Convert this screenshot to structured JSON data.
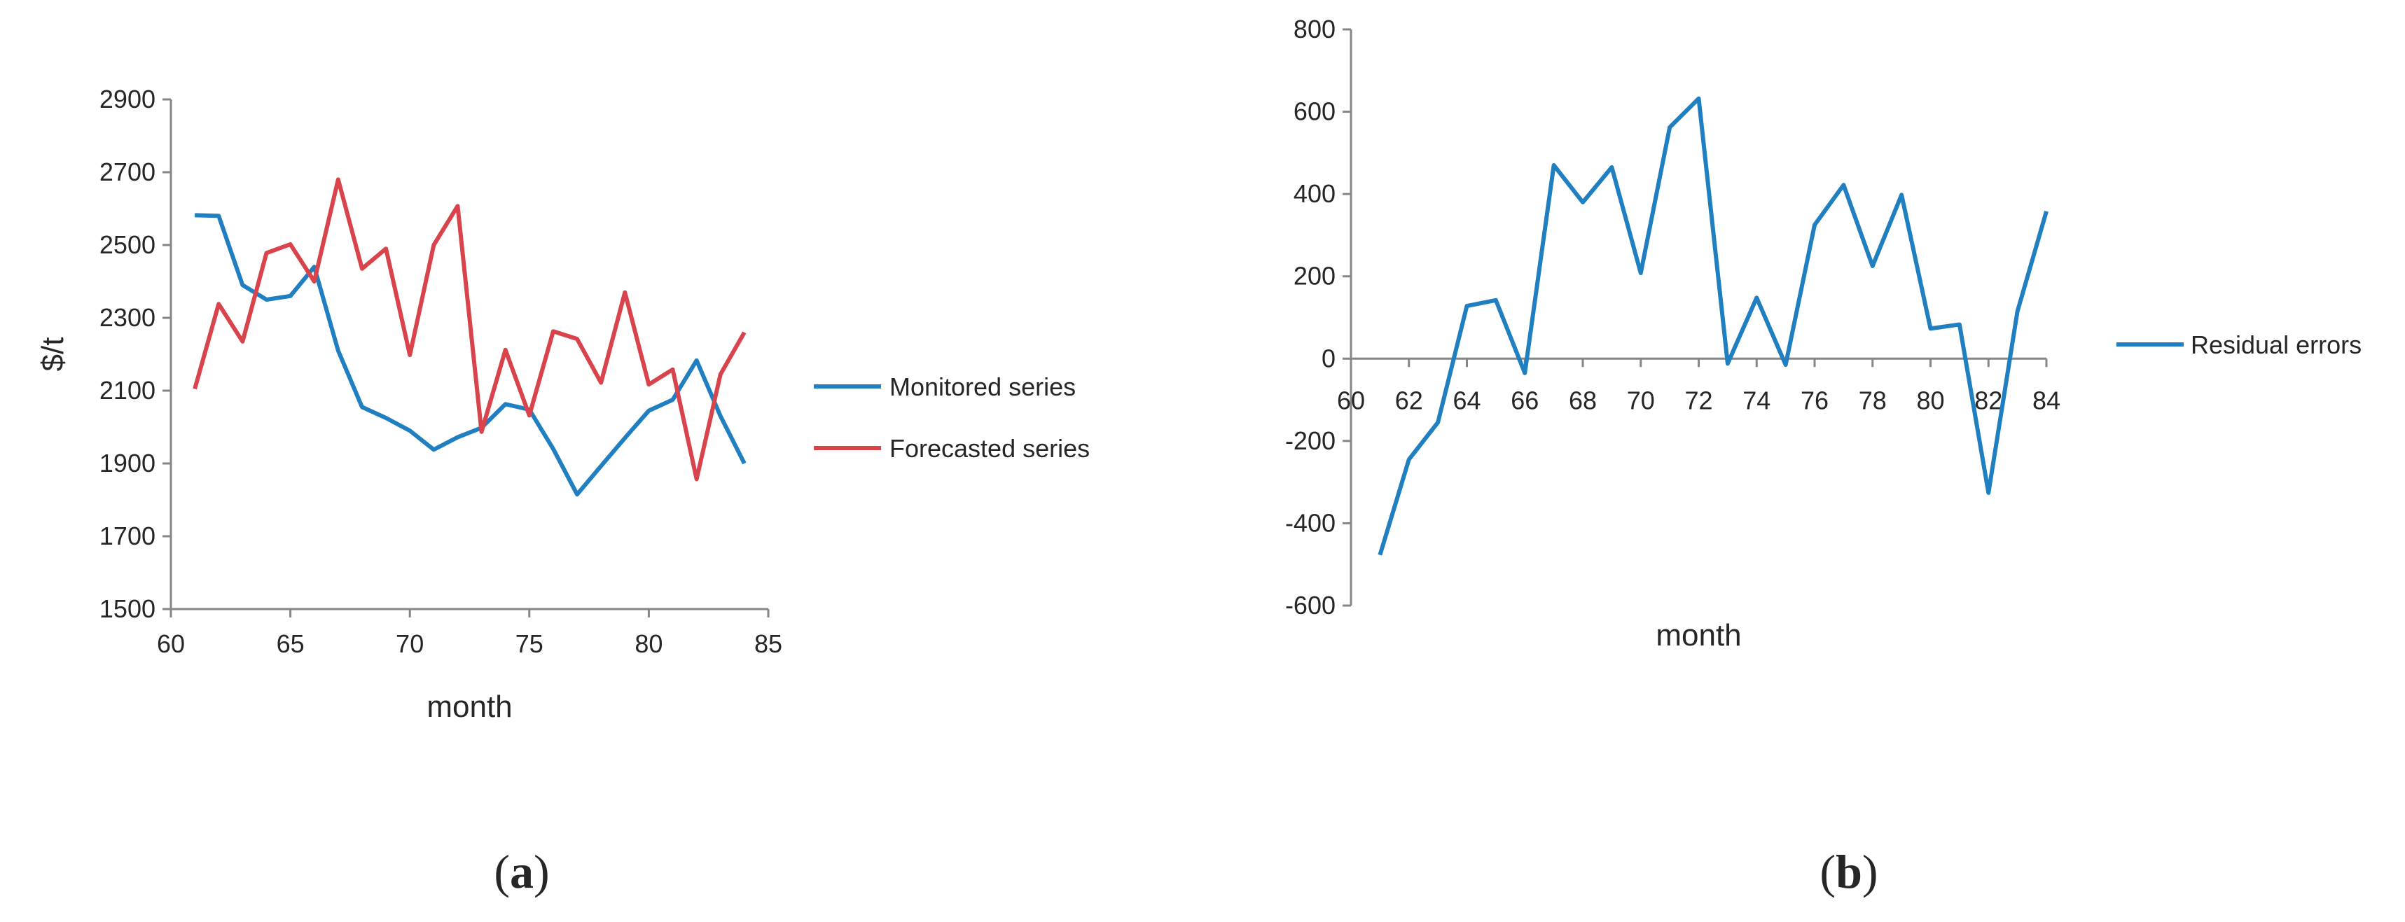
{
  "chart_data": [
    {
      "panel_label": "a",
      "type": "line",
      "title": "",
      "xlabel": "month",
      "ylabel": "$/t",
      "xlim": [
        60,
        85
      ],
      "ylim": [
        1500,
        2900
      ],
      "x_ticks": [
        "60",
        "65",
        "70",
        "75",
        "80",
        "85"
      ],
      "y_ticks": [
        "1500",
        "1700",
        "1900",
        "2100",
        "2300",
        "2500",
        "2700",
        "2900"
      ],
      "x": [
        61,
        62,
        63,
        64,
        65,
        66,
        67,
        68,
        69,
        70,
        71,
        72,
        73,
        74,
        75,
        76,
        77,
        78,
        79,
        80,
        81,
        82,
        83,
        84
      ],
      "series": [
        {
          "name": "Monitored series",
          "color": "#1f7fc0",
          "values": [
            2582,
            2580,
            2390,
            2350,
            2360,
            2440,
            2210,
            2055,
            2025,
            1990,
            1938,
            1972,
            1998,
            2063,
            2048,
            1940,
            1815,
            1893,
            1970,
            2045,
            2075,
            2183,
            2030,
            1900
          ]
        },
        {
          "name": "Forecasted series",
          "color": "#d9434c",
          "values": [
            2105,
            2338,
            2235,
            2478,
            2502,
            2400,
            2680,
            2435,
            2490,
            2198,
            2500,
            2607,
            1987,
            2212,
            2032,
            2263,
            2242,
            2122,
            2370,
            2117,
            2158,
            1857,
            2145,
            2260
          ]
        }
      ],
      "legend": "right",
      "grid": false
    },
    {
      "panel_label": "b",
      "type": "line",
      "title": "",
      "xlabel": "month",
      "ylabel": "",
      "xlim": [
        60,
        84
      ],
      "ylim": [
        -600,
        800
      ],
      "x_ticks": [
        "60",
        "62",
        "64",
        "66",
        "68",
        "70",
        "72",
        "74",
        "76",
        "78",
        "80",
        "82",
        "84"
      ],
      "y_ticks": [
        "-600",
        "-400",
        "-200",
        "0",
        "200",
        "400",
        "600",
        "800"
      ],
      "x": [
        61,
        62,
        63,
        64,
        65,
        66,
        67,
        68,
        69,
        70,
        71,
        72,
        73,
        74,
        75,
        76,
        77,
        78,
        79,
        80,
        81,
        82,
        83,
        84
      ],
      "series": [
        {
          "name": "Residual errors",
          "color": "#1f7fc0",
          "values": [
            -477,
            -245,
            -155,
            128,
            142,
            -35,
            470,
            380,
            465,
            208,
            562,
            632,
            -12,
            148,
            -15,
            325,
            422,
            225,
            398,
            73,
            83,
            -326,
            115,
            358
          ]
        }
      ],
      "legend": "right",
      "grid": false
    }
  ],
  "captions": {
    "a": {
      "open": "(",
      "letter": "a",
      "close": ")"
    },
    "b": {
      "open": "(",
      "letter": "b",
      "close": ")"
    }
  }
}
